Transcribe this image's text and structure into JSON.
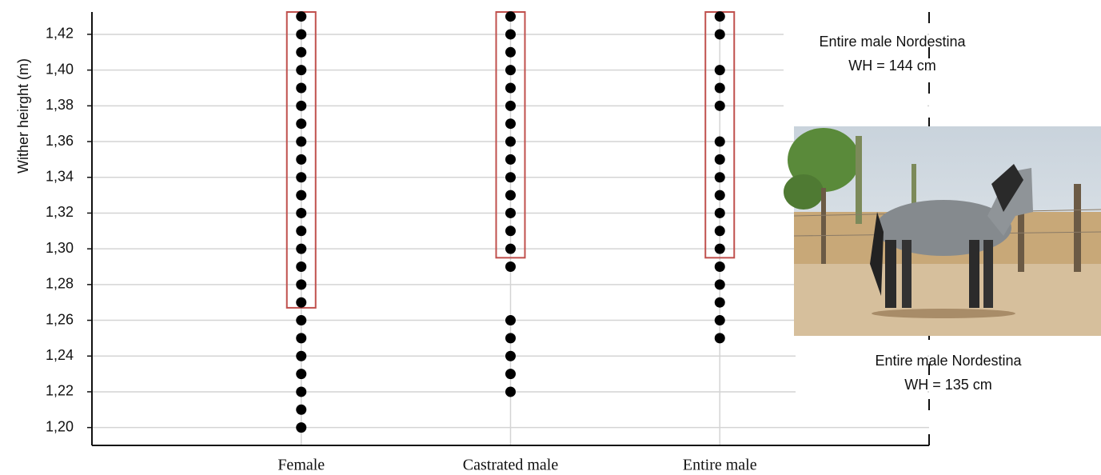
{
  "chart_data": {
    "type": "strip",
    "y_label": "Wither heirght (m)",
    "categories": [
      "Female",
      "Castrated male",
      "Entire male"
    ],
    "groups": [
      {
        "values": [
          1.2,
          1.21,
          1.22,
          1.23,
          1.24,
          1.25,
          1.26,
          1.27,
          1.28,
          1.29,
          1.3,
          1.31,
          1.32,
          1.33,
          1.34,
          1.35,
          1.36,
          1.37,
          1.38,
          1.39,
          1.4,
          1.41,
          1.42,
          1.43
        ],
        "box_low": 1.267
      },
      {
        "values": [
          1.22,
          1.23,
          1.24,
          1.25,
          1.26,
          1.29,
          1.3,
          1.31,
          1.32,
          1.33,
          1.34,
          1.35,
          1.36,
          1.37,
          1.38,
          1.39,
          1.4,
          1.41,
          1.42,
          1.43
        ],
        "box_low": 1.295
      },
      {
        "values": [
          1.25,
          1.26,
          1.27,
          1.28,
          1.29,
          1.3,
          1.31,
          1.32,
          1.33,
          1.34,
          1.35,
          1.36,
          1.38,
          1.39,
          1.4,
          1.42,
          1.43
        ],
        "box_low": 1.295
      }
    ],
    "dot_color": "#000000",
    "box_color": "#c0504d",
    "ylim": [
      1.19,
      1.4325
    ],
    "yticks": [
      {
        "value": 1.2,
        "label": "1,20"
      },
      {
        "value": 1.22,
        "label": "1,22"
      },
      {
        "value": 1.24,
        "label": "1,24"
      },
      {
        "value": 1.26,
        "label": "1,26"
      },
      {
        "value": 1.28,
        "label": "1,28"
      },
      {
        "value": 1.3,
        "label": "1,30"
      },
      {
        "value": 1.32,
        "label": "1,32"
      },
      {
        "value": 1.34,
        "label": "1,34"
      },
      {
        "value": 1.36,
        "label": "1,36"
      },
      {
        "value": 1.38,
        "label": "1,38"
      },
      {
        "value": 1.4,
        "label": "1,40"
      },
      {
        "value": 1.42,
        "label": "1,42"
      }
    ],
    "grid": true,
    "annotations": [
      {
        "lines": [
          "Entire male Nordestina",
          "WH = 144 cm"
        ]
      },
      {
        "lines": [
          "Entire male Nordestina",
          "WH = 135 cm"
        ]
      }
    ]
  }
}
